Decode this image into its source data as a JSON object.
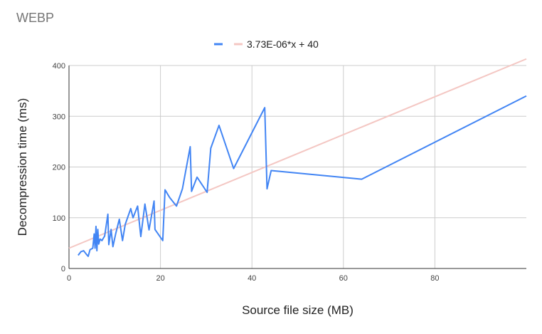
{
  "chart_data": {
    "type": "line",
    "title": "WEBP",
    "xlabel": "Source file size (MB)",
    "ylabel": "Decompression time (ms)",
    "xlim": [
      0,
      100
    ],
    "ylim": [
      0,
      400
    ],
    "x_ticks": [
      0,
      20,
      40,
      60,
      80
    ],
    "y_ticks": [
      0,
      100,
      200,
      300,
      400
    ],
    "grid": true,
    "legend_placement": "top",
    "series": [
      {
        "color": "#4285f4",
        "points": [
          [
            2,
            26
          ],
          [
            2.6,
            33
          ],
          [
            3.2,
            35
          ],
          [
            3.8,
            28
          ],
          [
            4.2,
            24
          ],
          [
            4.6,
            37
          ],
          [
            5.2,
            40
          ],
          [
            5.5,
            68
          ],
          [
            5.7,
            40
          ],
          [
            5.9,
            83
          ],
          [
            6.1,
            35
          ],
          [
            6.3,
            77
          ],
          [
            6.5,
            48
          ],
          [
            6.8,
            58
          ],
          [
            7.2,
            55
          ],
          [
            7.8,
            64
          ],
          [
            8.5,
            107
          ],
          [
            8.7,
            47
          ],
          [
            9.2,
            77
          ],
          [
            9.6,
            43
          ],
          [
            10.2,
            68
          ],
          [
            11,
            97
          ],
          [
            11.7,
            55
          ],
          [
            12.3,
            87
          ],
          [
            13.5,
            118
          ],
          [
            14,
            100
          ],
          [
            15,
            123
          ],
          [
            15.7,
            63
          ],
          [
            16.6,
            127
          ],
          [
            17.5,
            76
          ],
          [
            18.6,
            133
          ],
          [
            18.8,
            77
          ],
          [
            20.5,
            55
          ],
          [
            21,
            155
          ],
          [
            22,
            140
          ],
          [
            23.5,
            123
          ],
          [
            24.8,
            157
          ],
          [
            26.5,
            240
          ],
          [
            26.8,
            152
          ],
          [
            28,
            180
          ],
          [
            30.2,
            150
          ],
          [
            31,
            237
          ],
          [
            32.8,
            282
          ],
          [
            36,
            197
          ],
          [
            42.8,
            317
          ],
          [
            43.3,
            157
          ],
          [
            44.2,
            193
          ],
          [
            64,
            176
          ],
          [
            100,
            340
          ]
        ]
      },
      {
        "name": "3.73E-06*x + 40",
        "color": "#f4c7c3",
        "points": [
          [
            0,
            40
          ],
          [
            100,
            413
          ]
        ]
      }
    ]
  }
}
